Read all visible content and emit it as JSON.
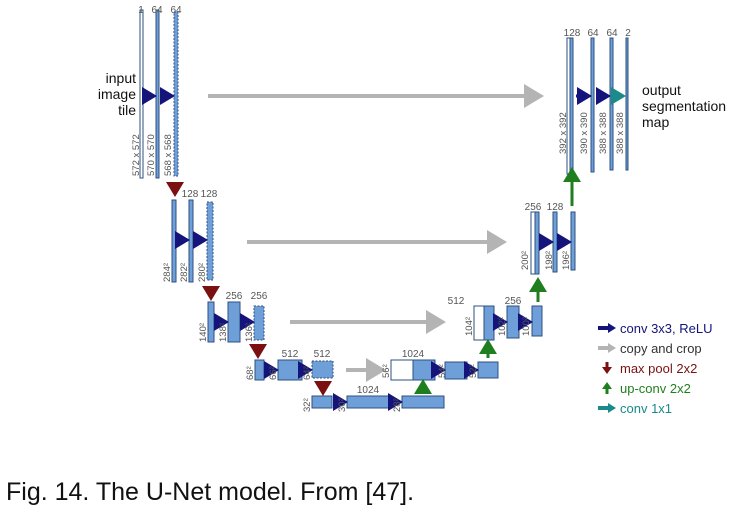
{
  "caption": "Fig. 14. The U-Net model. From [47].",
  "input_label": [
    "input",
    "image",
    "tile"
  ],
  "output_label": [
    "output",
    "segmentation",
    "map"
  ],
  "colors": {
    "block_fill": "#6f9fd8",
    "block_stroke": "#2c4f80",
    "conv": "#14147a",
    "copy_crop": "#b4b4b4",
    "max_pool": "#7a1010",
    "up_conv": "#1f7f1f",
    "conv1x1": "#1a8a8a",
    "text_gray": "#555555"
  },
  "legend": [
    {
      "label": "conv 3x3, ReLU",
      "icon": "conv-arrow-icon",
      "color": "#14147a"
    },
    {
      "label": "copy and crop",
      "icon": "copy-arrow-icon",
      "color": "#333333"
    },
    {
      "label": "max pool 2x2",
      "icon": "maxpool-arrow-icon",
      "color": "#7a1010"
    },
    {
      "label": "up-conv 2x2",
      "icon": "upconv-arrow-icon",
      "color": "#1f7f1f"
    },
    {
      "label": "conv 1x1",
      "icon": "conv1x1-arrow-icon",
      "color": "#1a8a8a"
    }
  ],
  "channel_labels": [
    "1",
    "64",
    "64",
    "128",
    "128",
    "256",
    "256",
    "512",
    "512",
    "1024",
    "1024",
    "512",
    "256",
    "256",
    "128",
    "128",
    "64",
    "64",
    "2"
  ],
  "size_labels": [
    "572 x 572",
    "570 x 570",
    "568 x 568",
    "284²",
    "282²",
    "280²",
    "140²",
    "138²",
    "136²",
    "68²",
    "66²",
    "64²",
    "32²",
    "30²",
    "28²",
    "56²",
    "54²",
    "52²",
    "104²",
    "102²",
    "100²",
    "200²",
    "198²",
    "196²",
    "392 x 392",
    "390 x 390",
    "388 x 388",
    "388 x 388"
  ]
}
